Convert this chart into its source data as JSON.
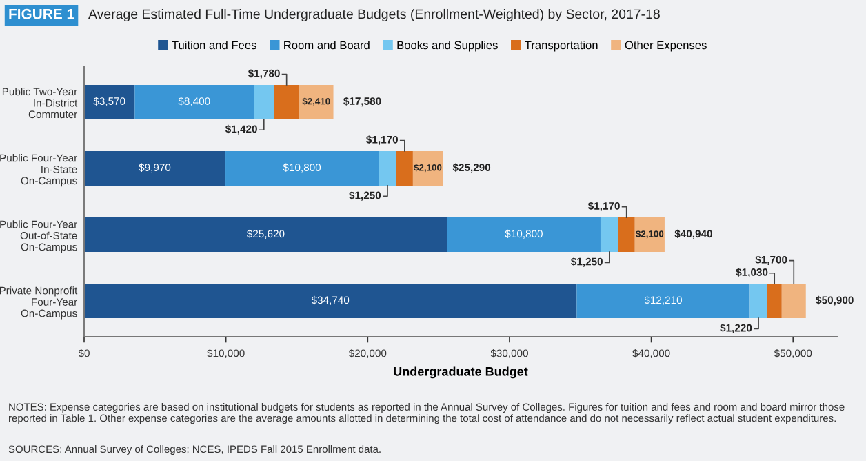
{
  "chart_data": {
    "type": "bar",
    "orientation": "horizontal",
    "stacked": true,
    "title": "Average Estimated Full-Time Undergraduate Budgets (Enrollment-Weighted) by Sector, 2017-18",
    "categories": [
      "Public Two-Year\nIn-District\nCommuter",
      "Public Four-Year\nIn-State\nOn-Campus",
      "Public Four-Year\nOut-of-State\nOn-Campus",
      "Private Nonprofit\nFour-Year\nOn-Campus"
    ],
    "series": [
      {
        "name": "Tuition and Fees",
        "color": "#1f5591",
        "values": [
          3570,
          9970,
          25620,
          34740
        ],
        "value_labels": [
          "$3,570",
          "$9,970",
          "$25,620",
          "$34,740"
        ]
      },
      {
        "name": "Room and Board",
        "color": "#3a96d6",
        "values": [
          8400,
          10800,
          10800,
          12210
        ],
        "value_labels": [
          "$8,400",
          "$10,800",
          "$10,800",
          "$12,210"
        ]
      },
      {
        "name": "Books and Supplies",
        "color": "#74c7f0",
        "values": [
          1420,
          1250,
          1250,
          1220
        ],
        "value_labels": [
          "$1,420",
          "$1,250",
          "$1,250",
          "$1,220"
        ]
      },
      {
        "name": "Transportation",
        "color": "#d96e1c",
        "values": [
          1780,
          1170,
          1170,
          1030
        ],
        "value_labels": [
          "$1,780",
          "$1,170",
          "$1,170",
          "$1,030"
        ]
      },
      {
        "name": "Other Expenses",
        "color": "#f0b47f",
        "values": [
          2410,
          2100,
          2100,
          1700
        ],
        "value_labels": [
          "$2,410",
          "$2,100",
          "$2,100",
          "$1,700"
        ]
      }
    ],
    "totals": [
      "$17,580",
      "$25,290",
      "$40,940",
      "$50,900"
    ],
    "xlabel": "Undergraduate Budget",
    "xlim": [
      0,
      53100
    ],
    "xticks": [
      {
        "value": 0,
        "label": "$0"
      },
      {
        "value": 10000,
        "label": "$10,000"
      },
      {
        "value": 20000,
        "label": "$20,000"
      },
      {
        "value": 30000,
        "label": "$30,000"
      },
      {
        "value": 40000,
        "label": "$40,000"
      },
      {
        "value": 50000,
        "label": "$50,000"
      }
    ],
    "legend": "top",
    "grid": false,
    "annotations": [
      "FIGURE 1",
      "NOTES: Expense categories are based on institutional budgets for students as reported in the Annual Survey of Colleges. Figures for tuition and fees and room and board mirror those reported in Table 1. Other expense categories are the average amounts allotted in determining the total cost of attendance and do not necessarily reflect actual student expenditures.",
      "SOURCES: Annual Survey of Colleges; NCES, IPEDS Fall 2015 Enrollment data."
    ]
  }
}
